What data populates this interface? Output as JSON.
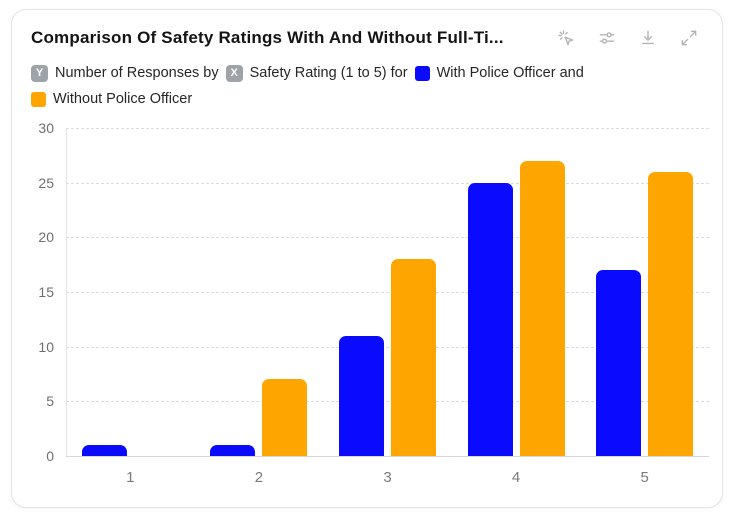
{
  "card": {
    "title": "Comparison Of Safety Ratings With And Without Full-Ti..."
  },
  "toolbar": {
    "icons": [
      "cursor-spark",
      "sliders",
      "download",
      "expand"
    ]
  },
  "legend": {
    "y_badge": "Y",
    "y_label": "Number of Responses by",
    "x_badge": "X",
    "x_label": "Safety Rating (1 to 5) for",
    "series1_label": "With Police Officer and",
    "series2_label": "Without Police Officer"
  },
  "colors": {
    "series1": "#0a0aff",
    "series2": "#ffa500",
    "grid": "#dcdcdc",
    "axis": "#e3e3e3",
    "tick_text": "#6f6f6f",
    "icon": "#b5b5b5",
    "badge": "#9da3a8"
  },
  "chart_data": {
    "type": "bar",
    "categories": [
      "1",
      "2",
      "3",
      "4",
      "5"
    ],
    "series": [
      {
        "name": "With Police Officer",
        "color": "#0a0aff",
        "values": [
          1,
          1,
          11,
          25,
          17
        ]
      },
      {
        "name": "Without Police Officer",
        "color": "#ffa500",
        "values": [
          0,
          7,
          18,
          27,
          26
        ]
      }
    ],
    "title": "Comparison Of Safety Ratings With And Without Full-Ti...",
    "xlabel": "Safety Rating (1 to 5)",
    "ylabel": "Number of Responses",
    "ylim": [
      0,
      30
    ],
    "yticks": [
      0,
      5,
      10,
      15,
      20,
      25,
      30
    ],
    "grid": true,
    "legend_position": "top"
  }
}
